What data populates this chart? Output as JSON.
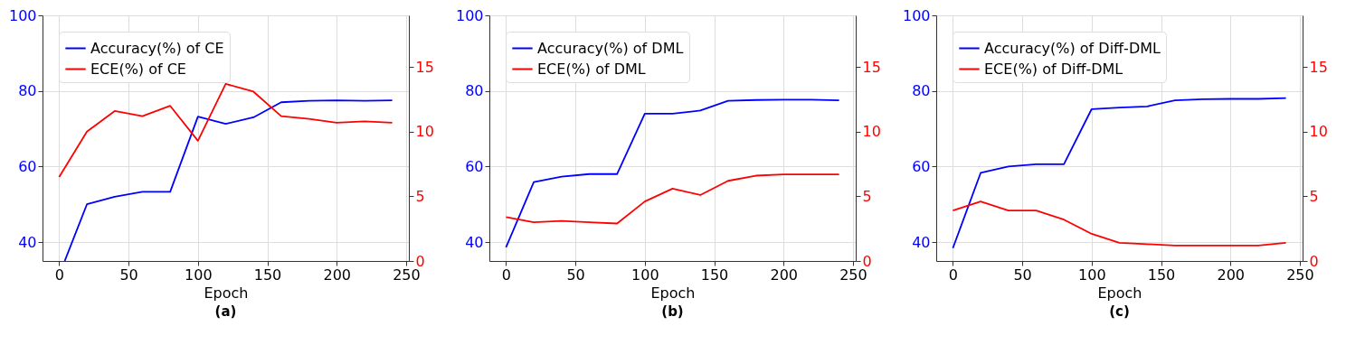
{
  "chart_data": [
    {
      "type": "line",
      "annotations": [
        "(a)"
      ],
      "xlabel": "Epoch",
      "xlim": [
        -12,
        252
      ],
      "xticks": [
        0,
        50,
        100,
        150,
        200,
        250
      ],
      "ylim": [
        35,
        100
      ],
      "yticks": [
        40,
        60,
        80,
        100
      ],
      "y2lim": [
        0,
        19
      ],
      "y2ticks": [
        0,
        5,
        10,
        15
      ],
      "grid": true,
      "legend": "top left",
      "x": [
        0,
        20,
        40,
        60,
        80,
        100,
        120,
        140,
        160,
        180,
        200,
        220,
        240
      ],
      "series": [
        {
          "name": "Accuracy(%) of CE",
          "color": "#0000ff",
          "x": [
            4,
            20,
            40,
            60,
            80,
            100,
            120,
            140,
            160,
            180,
            200,
            220,
            240
          ],
          "values": [
            35,
            50,
            52.0,
            53.3,
            53.3,
            73.2,
            71.3,
            73.0,
            77.0,
            77.4,
            77.5,
            77.4,
            77.5
          ]
        },
        {
          "name": "ECE(%) of CE",
          "color": "#ff0000",
          "axis": "y2",
          "values": [
            6.5,
            10.0,
            11.6,
            11.2,
            12.0,
            9.3,
            13.7,
            13.1,
            11.2,
            11.0,
            10.7,
            10.8,
            10.7
          ]
        }
      ]
    },
    {
      "type": "line",
      "annotations": [
        "(b)"
      ],
      "xlabel": "Epoch",
      "xlim": [
        -12,
        252
      ],
      "xticks": [
        0,
        50,
        100,
        150,
        200,
        250
      ],
      "ylim": [
        35,
        100
      ],
      "yticks": [
        40,
        60,
        80,
        100
      ],
      "y2lim": [
        0,
        19
      ],
      "y2ticks": [
        0,
        5,
        10,
        15
      ],
      "grid": true,
      "legend": "top left",
      "x": [
        0,
        20,
        40,
        60,
        80,
        100,
        120,
        140,
        160,
        180,
        200,
        220,
        240
      ],
      "series": [
        {
          "name": "Accuracy(%) of DML",
          "color": "#0000ff",
          "values": [
            38.6,
            55.9,
            57.3,
            58.0,
            58.0,
            74.0,
            74.0,
            74.8,
            77.4,
            77.6,
            77.7,
            77.7,
            77.5
          ]
        },
        {
          "name": "ECE(%) of DML",
          "color": "#ff0000",
          "axis": "y2",
          "values": [
            3.4,
            3.0,
            3.1,
            3.0,
            2.9,
            4.6,
            5.6,
            5.1,
            6.2,
            6.6,
            6.7,
            6.7,
            6.7
          ]
        }
      ]
    },
    {
      "type": "line",
      "annotations": [
        "(c)"
      ],
      "xlabel": "Epoch",
      "xlim": [
        -12,
        252
      ],
      "xticks": [
        0,
        50,
        100,
        150,
        200,
        250
      ],
      "ylim": [
        35,
        100
      ],
      "yticks": [
        40,
        60,
        80,
        100
      ],
      "y2lim": [
        0,
        19
      ],
      "y2ticks": [
        0,
        5,
        10,
        15
      ],
      "grid": true,
      "legend": "top left",
      "x": [
        0,
        20,
        40,
        60,
        80,
        100,
        120,
        140,
        160,
        180,
        200,
        220,
        240
      ],
      "series": [
        {
          "name": "Accuracy(%) of Diff-DML",
          "color": "#0000ff",
          "values": [
            38.4,
            58.3,
            60.0,
            60.6,
            60.6,
            75.2,
            75.6,
            75.9,
            77.5,
            77.8,
            77.9,
            77.9,
            78.1
          ]
        },
        {
          "name": "ECE(%) of Diff-DML",
          "color": "#ff0000",
          "axis": "y2",
          "values": [
            3.9,
            4.6,
            3.9,
            3.9,
            3.2,
            2.1,
            1.4,
            1.3,
            1.2,
            1.2,
            1.2,
            1.2,
            1.4
          ]
        }
      ]
    }
  ]
}
